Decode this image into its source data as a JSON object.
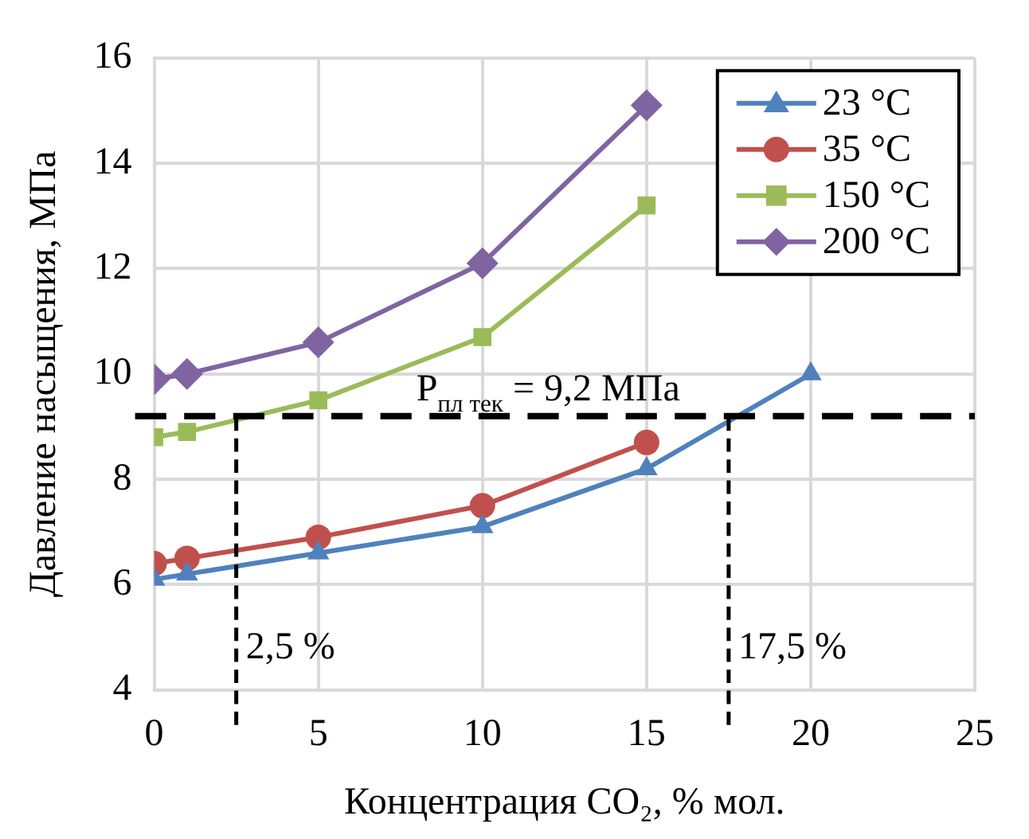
{
  "chart_data": {
    "type": "line",
    "xlabel": "Концентрация CO₂, % мол.",
    "ylabel": "Давление насыщения, МПа",
    "xlim": [
      0,
      25
    ],
    "xticks": [
      0,
      5,
      10,
      15,
      20,
      25
    ],
    "ylim": [
      4,
      16
    ],
    "yticks": [
      4,
      6,
      8,
      10,
      12,
      14,
      16
    ],
    "grid": true,
    "legend": "top right",
    "line_style": "solid",
    "series": [
      {
        "name": "23 °C",
        "color": "#4f81bd",
        "marker": "triangle",
        "x": [
          0,
          1,
          5,
          10,
          15,
          20
        ],
        "values": [
          6.1,
          6.2,
          6.6,
          7.1,
          8.2,
          10.0
        ]
      },
      {
        "name": "35 °C",
        "color": "#c0504d",
        "marker": "circle",
        "x": [
          0,
          1,
          5,
          10,
          15
        ],
        "values": [
          6.4,
          6.5,
          6.9,
          7.5,
          8.7
        ]
      },
      {
        "name": "150 °C",
        "color": "#9bbb59",
        "marker": "square",
        "x": [
          0,
          1,
          5,
          10,
          15
        ],
        "values": [
          8.8,
          8.9,
          9.5,
          10.7,
          13.2
        ]
      },
      {
        "name": "200 °C",
        "color": "#8064a2",
        "marker": "diamond",
        "x": [
          0,
          1,
          5,
          10,
          15
        ],
        "values": [
          9.9,
          10.0,
          10.6,
          12.1,
          15.1
        ]
      }
    ],
    "ref_lines": [
      {
        "axis": "y",
        "value": 9.2,
        "label": "P$_{пл тек}$ = 9,2 МПа",
        "color": "#000000",
        "line_style": "dashed"
      },
      {
        "axis": "x",
        "value": 2.5,
        "label": "2,5 %",
        "color": "#000000",
        "line_style": "dashed"
      },
      {
        "axis": "x",
        "value": 17.5,
        "label": "17,5 %",
        "color": "#000000",
        "line_style": "dashed"
      }
    ]
  }
}
